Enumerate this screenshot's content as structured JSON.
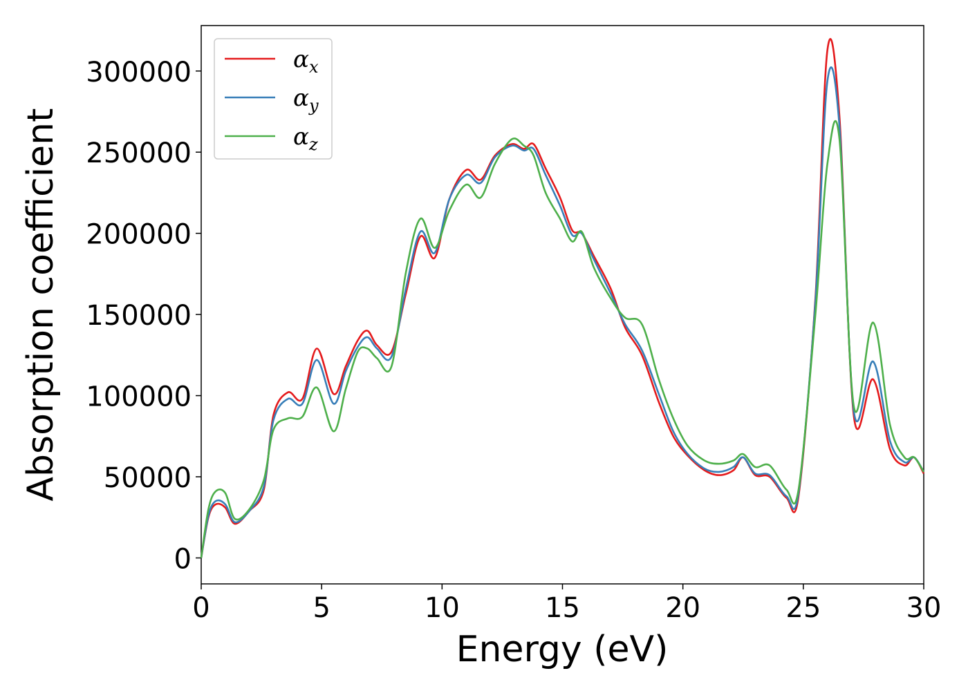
{
  "chart_data": {
    "type": "line",
    "xlabel": "Energy (eV)",
    "ylabel": "Absorption coefficient",
    "xlim": [
      0,
      30
    ],
    "ylim": [
      -16000,
      328000
    ],
    "x_ticks": [
      "0",
      "5",
      "10",
      "15",
      "20",
      "25",
      "30"
    ],
    "y_ticks": [
      "0",
      "50000",
      "100000",
      "150000",
      "200000",
      "250000",
      "300000"
    ],
    "x_tick_values": [
      0,
      5,
      10,
      15,
      20,
      25,
      30
    ],
    "y_tick_values": [
      0,
      50000,
      100000,
      150000,
      200000,
      250000,
      300000
    ],
    "grid": false,
    "legend_position": "top-left",
    "x": [
      0,
      0.3,
      0.6,
      1.0,
      1.4,
      2.0,
      2.6,
      3.0,
      3.6,
      4.2,
      4.8,
      5.5,
      6.0,
      6.5,
      6.9,
      7.3,
      7.9,
      8.5,
      9.1,
      9.7,
      10.3,
      11.0,
      11.6,
      12.2,
      12.9,
      13.4,
      13.8,
      14.3,
      14.9,
      15.4,
      15.8,
      16.3,
      17.0,
      17.6,
      18.3,
      19.0,
      19.6,
      20.2,
      20.9,
      21.5,
      22.1,
      22.5,
      23.0,
      23.6,
      24.3,
      24.8,
      25.5,
      26.0,
      26.5,
      27.1,
      27.9,
      28.6,
      29.2,
      29.6,
      30.0
    ],
    "series": [
      {
        "name": "α_x",
        "color": "#e41a1c",
        "values": [
          0,
          25000,
          33000,
          31000,
          21000,
          29000,
          42000,
          88000,
          102000,
          98000,
          129000,
          101000,
          118000,
          134000,
          140000,
          131000,
          127000,
          163000,
          198000,
          185000,
          221000,
          239000,
          233000,
          248000,
          255000,
          252000,
          255000,
          240000,
          222000,
          202000,
          200000,
          186000,
          166000,
          142000,
          125000,
          96000,
          75000,
          63000,
          54000,
          51000,
          54000,
          62000,
          51000,
          50000,
          37000,
          38000,
          160000,
          313000,
          272000,
          87000,
          110000,
          67000,
          57000,
          62000,
          52000
        ]
      },
      {
        "name": "α_y",
        "color": "#377eb8",
        "values": [
          0,
          26000,
          35000,
          33000,
          22000,
          29000,
          44000,
          85000,
          98000,
          95000,
          122000,
          95000,
          115000,
          130000,
          136000,
          129000,
          124000,
          166000,
          201000,
          188000,
          221000,
          236000,
          231000,
          247000,
          254000,
          251000,
          252000,
          236000,
          217000,
          199000,
          200000,
          184000,
          163000,
          144000,
          128000,
          101000,
          78000,
          64000,
          55000,
          53000,
          56000,
          62000,
          52000,
          51000,
          38000,
          40000,
          158000,
          294000,
          266000,
          90000,
          121000,
          72000,
          59000,
          62000,
          53000
        ]
      },
      {
        "name": "α_z",
        "color": "#4daf4a",
        "values": [
          0,
          30000,
          41000,
          40000,
          24000,
          30000,
          48000,
          79000,
          86000,
          87000,
          105000,
          78000,
          104000,
          127000,
          129000,
          123000,
          118000,
          176000,
          209000,
          191000,
          214000,
          230000,
          222000,
          243000,
          258000,
          254000,
          248000,
          225000,
          209000,
          195000,
          201000,
          179000,
          160000,
          148000,
          144000,
          110000,
          86000,
          69000,
          60000,
          58000,
          60000,
          64000,
          56000,
          57000,
          42000,
          42000,
          150000,
          243000,
          258000,
          93000,
          145000,
          82000,
          62000,
          62000,
          53000
        ]
      }
    ]
  }
}
